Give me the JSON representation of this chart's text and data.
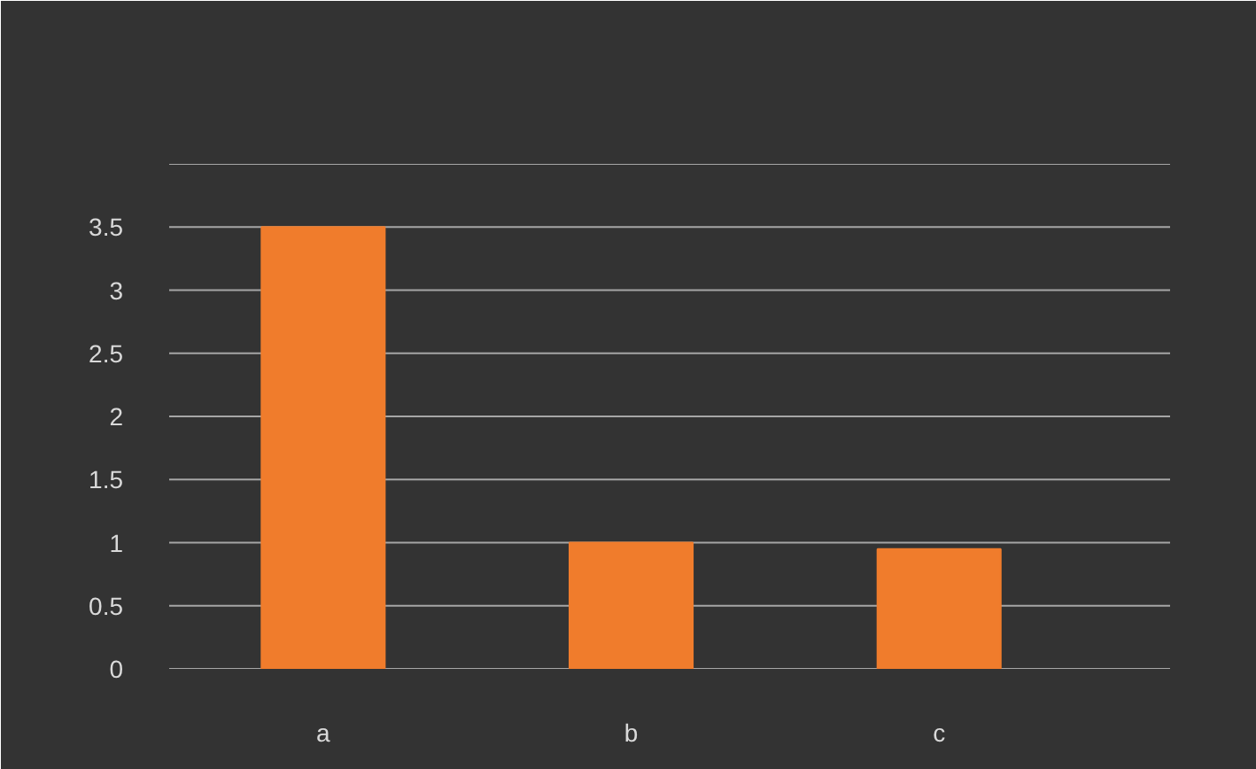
{
  "chart_data": {
    "type": "bar",
    "categories": [
      "a",
      "b",
      "c"
    ],
    "values": [
      3.5,
      1.0,
      0.95
    ],
    "color": "#f07c2c",
    "ylim": [
      0,
      4
    ],
    "yticks": [
      0,
      0.5,
      1,
      1.5,
      2,
      2.5,
      3,
      3.5,
      {
        "value": 4,
        "label": null
      }
    ],
    "grid": "y"
  }
}
